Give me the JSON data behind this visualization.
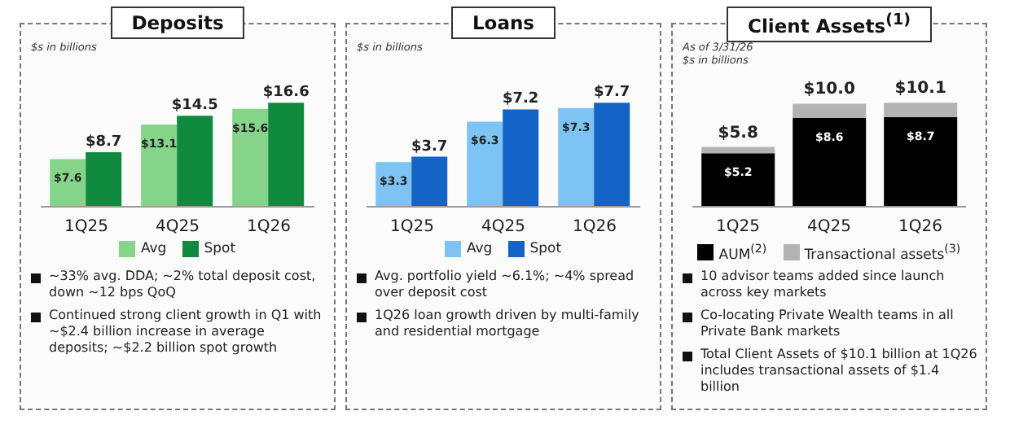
{
  "chart_data": [
    {
      "type": "bar",
      "title": "Deposits",
      "subtitle": "$s in billions",
      "categories": [
        "1Q25",
        "4Q25",
        "1Q26"
      ],
      "legend": "bottom",
      "series": [
        {
          "name": "Avg",
          "color": "#86d38a",
          "values": [
            7.6,
            13.1,
            15.6
          ],
          "value_labels": [
            "$7.6",
            "$13.1",
            "$15.6"
          ]
        },
        {
          "name": "Spot",
          "color": "#0f8a3e",
          "values": [
            8.7,
            14.5,
            16.6
          ],
          "value_labels": [
            "$8.7",
            "$14.5",
            "$16.6"
          ]
        }
      ],
      "annotations": [
        "~33% avg. DDA; ~2% total deposit cost, down ~12 bps QoQ",
        "Continued strong client growth in Q1 with ~$2.4 billion increase in average deposits; ~$2.2 billion spot growth"
      ]
    },
    {
      "type": "bar",
      "title": "Loans",
      "subtitle": "$s in billions",
      "categories": [
        "1Q25",
        "4Q25",
        "1Q26"
      ],
      "legend": "bottom",
      "series": [
        {
          "name": "Avg",
          "color": "#7dc3f3",
          "values": [
            3.3,
            6.3,
            7.3
          ],
          "value_labels": [
            "$3.3",
            "$6.3",
            "$7.3"
          ]
        },
        {
          "name": "Spot",
          "color": "#1463c6",
          "values": [
            3.7,
            7.2,
            7.7
          ],
          "value_labels": [
            "$3.7",
            "$7.2",
            "$7.7"
          ]
        }
      ],
      "annotations": [
        "Avg. portfolio yield ~6.1%; ~4% spread over deposit cost",
        "1Q26 loan growth driven by multi-family and residential mortgage"
      ]
    },
    {
      "type": "bar",
      "title": "Client Assets$^{(1)}$",
      "subtitle": "As of 3/31/26\n$s in billions",
      "categories": [
        "1Q25",
        "4Q25",
        "1Q26"
      ],
      "legend": "bottom",
      "stacked": true,
      "series": [
        {
          "name": "AUM$^{(2)}$",
          "color": "#000000",
          "values": [
            5.2,
            8.6,
            8.7
          ],
          "value_labels": [
            "$5.2",
            "$8.6",
            "$8.7"
          ]
        },
        {
          "name": "Transactional assets$^{(3)}$",
          "color": "#b3b3b3",
          "values": [
            0.6,
            1.4,
            1.4
          ]
        }
      ],
      "totals": [
        "$5.8",
        "$10.0",
        "$10.1"
      ],
      "annotations": [
        "10 advisor teams added since launch across key markets",
        "Co-locating Private Wealth teams in all Private Bank markets",
        "Total Client Assets of $10.1 billion at 1Q26 includes transactional assets of $1.4 billion"
      ]
    }
  ]
}
